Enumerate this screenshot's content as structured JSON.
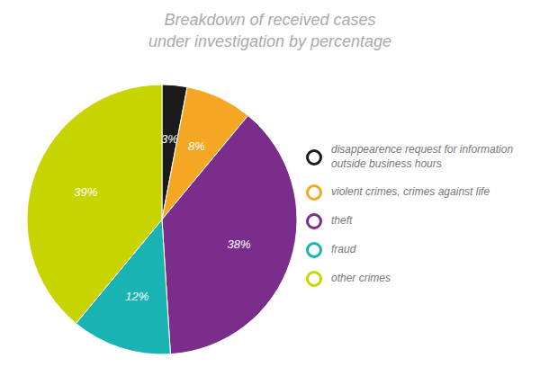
{
  "chart_data": {
    "type": "pie",
    "title": "Breakdown of received cases\nunder investigation by percentage",
    "categories": [
      "disappearence request for information\noutside business hours",
      "violent crimes, crimes against life",
      "theft",
      "fraud",
      "other crimes"
    ],
    "values": [
      3,
      8,
      38,
      12,
      39
    ],
    "value_labels": [
      "3%",
      "8%",
      "38%",
      "12%",
      "39%"
    ],
    "colors": [
      "#1a1a1a",
      "#f5a623",
      "#7b2d8b",
      "#1ab3b3",
      "#c8d400"
    ],
    "data_labels": true,
    "legend": "right"
  }
}
